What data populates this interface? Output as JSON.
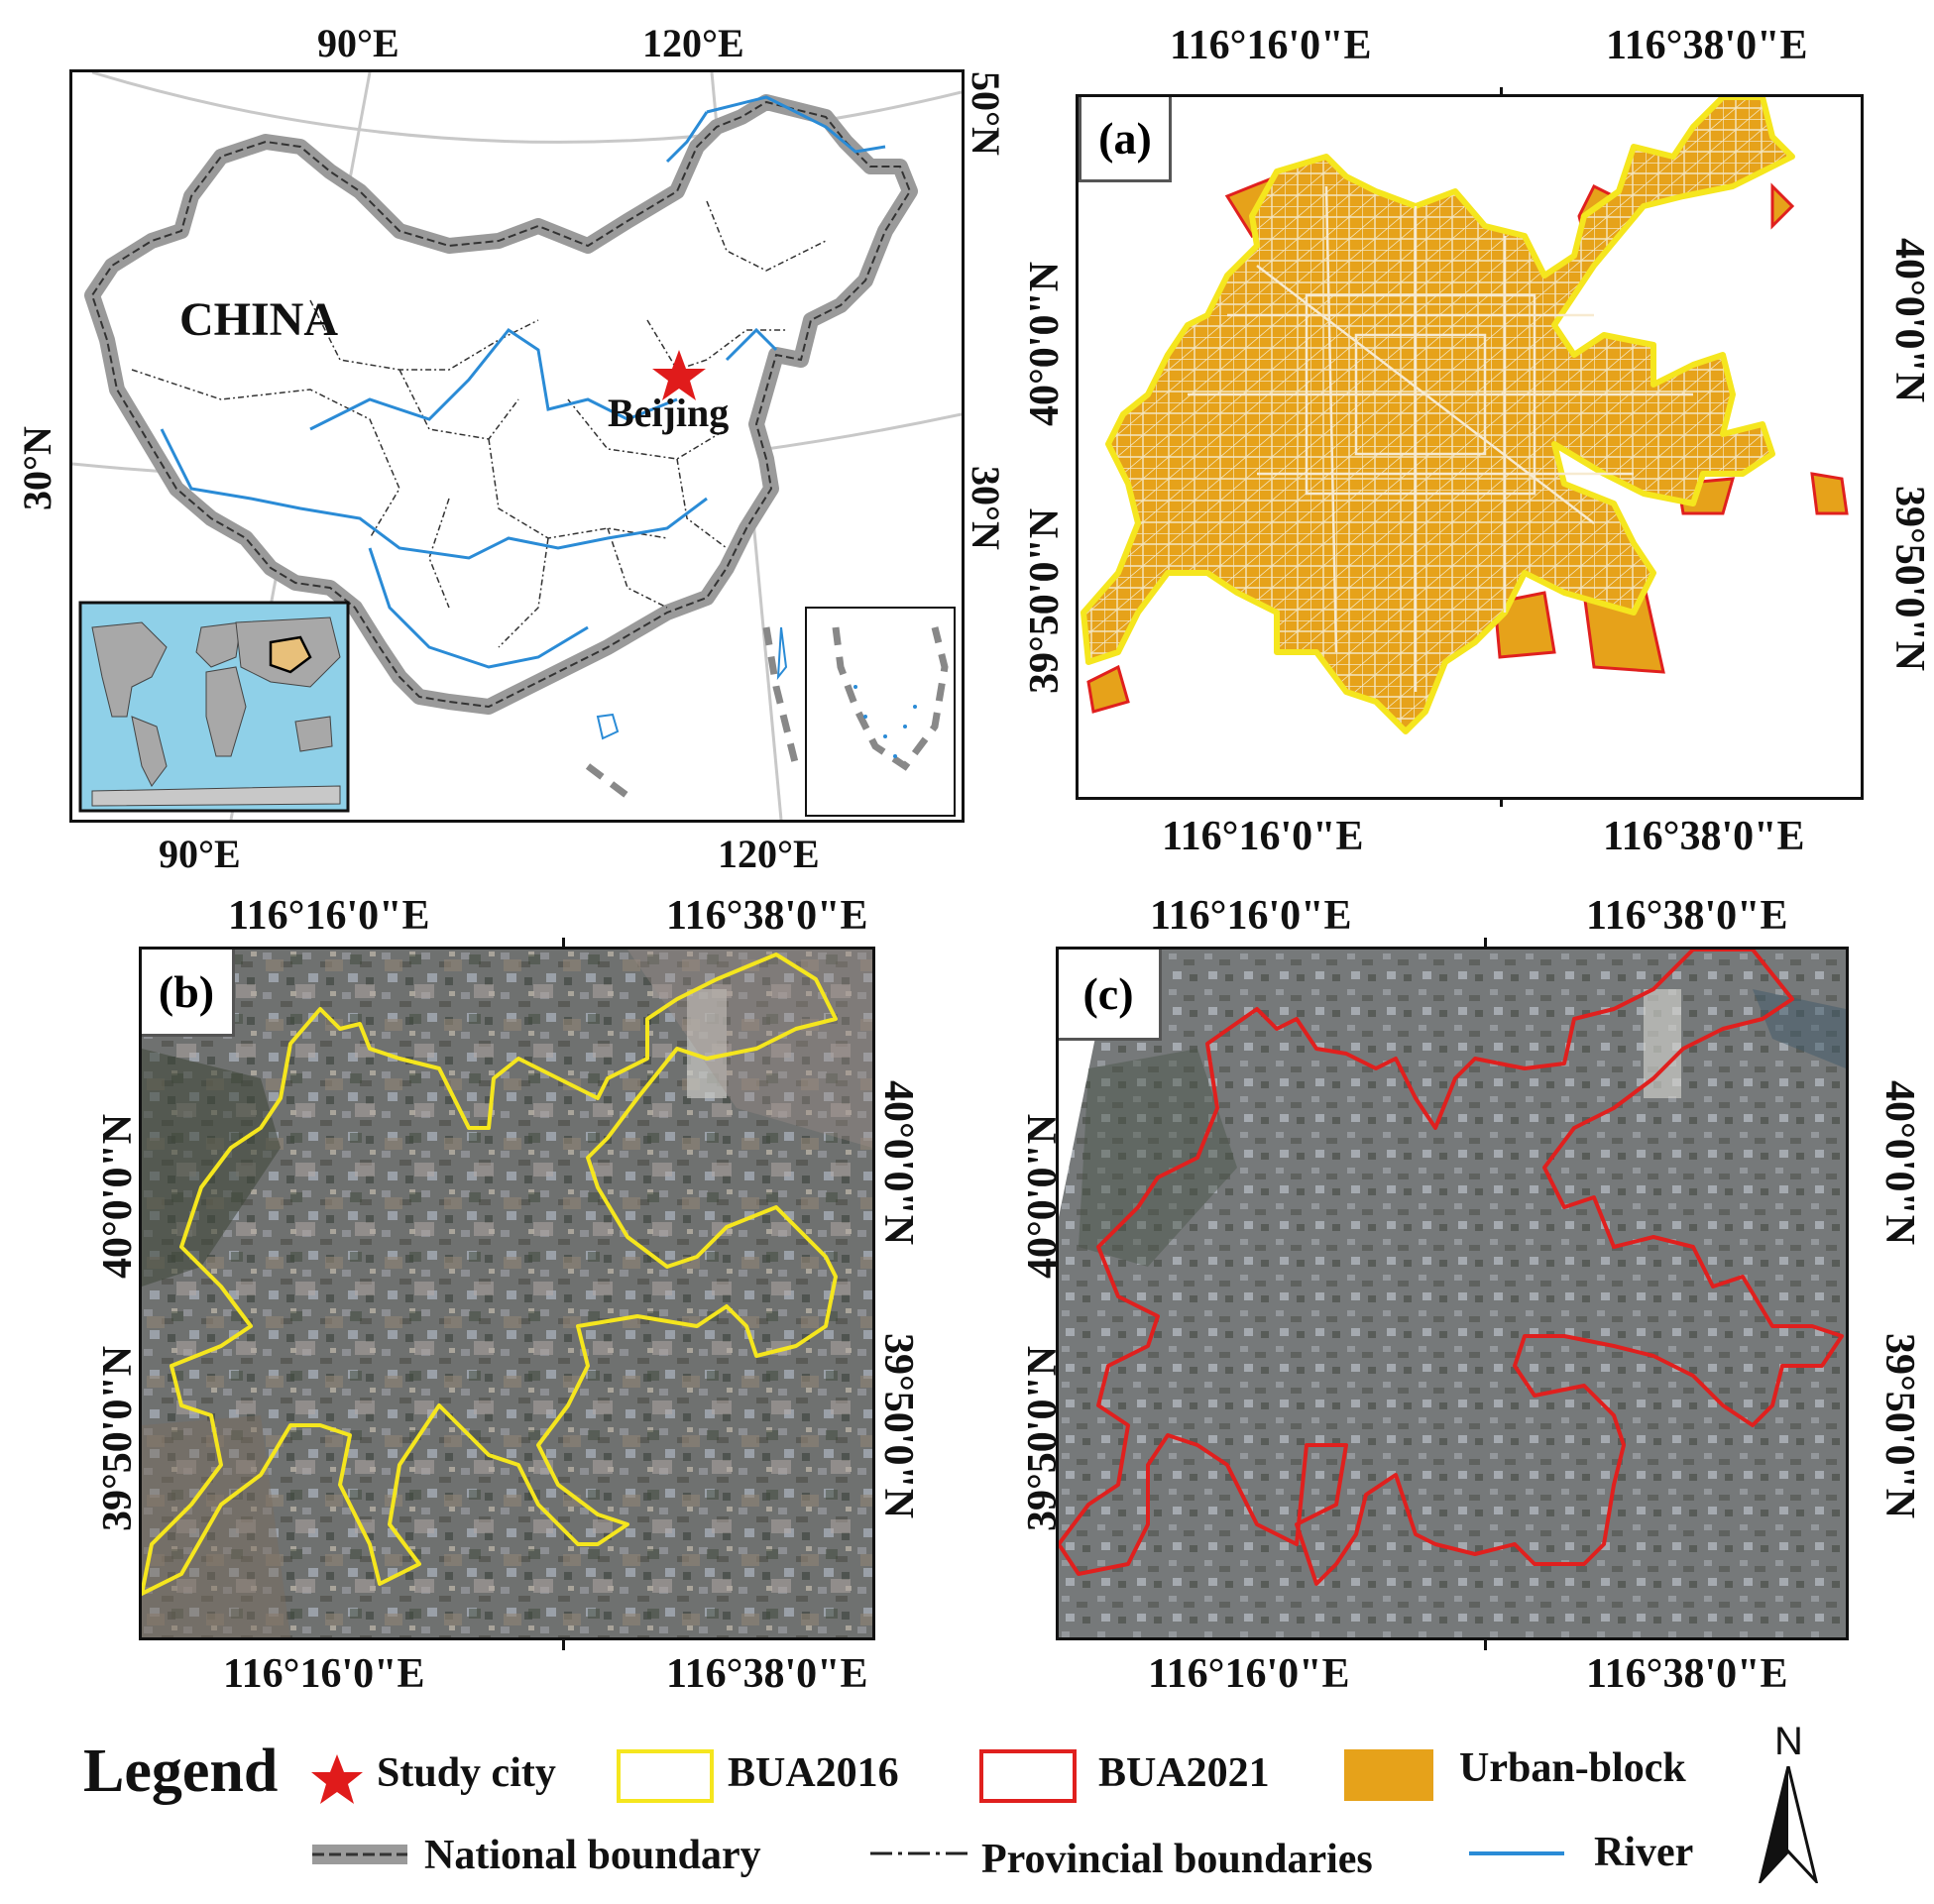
{
  "china_map": {
    "lon_top": [
      "90°E",
      "120°E"
    ],
    "lon_bottom": [
      "90°E",
      "120°E"
    ],
    "lat_right": [
      "50°N",
      "30°N"
    ],
    "lat_left": [
      "30°N"
    ],
    "country_label": "CHINA",
    "city_label": "Beijing"
  },
  "panel_a": {
    "tag": "(a)",
    "lon_top": [
      "116°16'0\"E",
      "116°38'0\"E"
    ],
    "lon_bottom": [
      "116°16'0\"E",
      "116°38'0\"E"
    ],
    "lat_left": [
      "40°0'0\"N",
      "39°50'0\"N"
    ],
    "lat_right": [
      "40°0'0\"N",
      "39°50'0\"N"
    ]
  },
  "panel_b": {
    "tag": "(b)",
    "lon_top": [
      "116°16'0\"E",
      "116°38'0\"E"
    ],
    "lon_bottom": [
      "116°16'0\"E",
      "116°38'0\"E"
    ],
    "lat_left": [
      "40°0'0\"N",
      "39°50'0\"N"
    ],
    "lat_right": [
      "40°0'0\"N",
      "39°50'0\"N"
    ]
  },
  "panel_c": {
    "tag": "(c)",
    "lon_top": [
      "116°16'0\"E",
      "116°38'0\"E"
    ],
    "lon_bottom": [
      "116°16'0\"E",
      "116°38'0\"E"
    ],
    "lat_left": [
      "40°0'0\"N",
      "39°50'0\"N"
    ],
    "lat_right": [
      "40°0'0\"N",
      "39°50'0\"N"
    ]
  },
  "legend": {
    "title": "Legend",
    "items": {
      "study_city": "Study city",
      "bua2016": "BUA2016",
      "bua2021": "BUA2021",
      "urban_block": "Urban-block",
      "national_boundary": "National boundary",
      "provincial_boundaries": "Provincial boundaries",
      "river": "River"
    },
    "north": "N"
  },
  "colors": {
    "bua2016": "#f5e61e",
    "bua2021": "#e0201e",
    "urban_block": "#e6a21a",
    "river": "#2a8bd6",
    "national_boundary": "#9a9a9a",
    "ocean_inset": "#8fd0e8",
    "star": "#e01b1b"
  }
}
